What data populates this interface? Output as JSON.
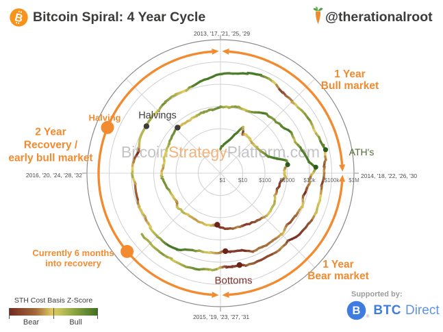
{
  "header": {
    "title": "Bitcoin Spiral: 4 Year Cycle",
    "attribution": "@therationalroot"
  },
  "watermark": {
    "part1": "Bitcoin",
    "part2": "Strategy",
    "part3": "Platform.com"
  },
  "axis": {
    "year_labels": {
      "top": "2013, '17, '21, '25, '29",
      "right": "2014, '18, '22, '26, '30",
      "bottom": "2015, '19, '23, '27, '31",
      "left": "2016, '20, '24, '28, '32"
    },
    "radial_ticks": [
      "$1",
      "$10",
      "$100",
      "$1000",
      "$10k",
      "$100k",
      "$1M"
    ]
  },
  "annotations": {
    "bull_phase": "1 Year\nBull market",
    "bear_phase": "1 Year\nBear market",
    "recovery_phase": "2 Year\nRecovery /\nearly bull market",
    "halving_marker": "Halving",
    "current_marker": "Currently 6 months\ninto recovery",
    "halvings": "Halvings",
    "bottoms": "Bottoms",
    "aths": "ATH's"
  },
  "legend": {
    "title": "STH Cost Basis Z-Score",
    "left_label": "Bear",
    "right_label": "Bull"
  },
  "supported": {
    "label": "Supported by:",
    "brand_bold": "BTC",
    "brand_light": "Direct",
    "registered": "®"
  },
  "colors": {
    "accent_orange": "#f28b30",
    "bear_red": "#7b2d26",
    "neutral_yellow": "#e0cb5e",
    "bull_green": "#497a27",
    "grid_gray": "#cfcfcf",
    "outer_ring_gray": "#8a8a8a",
    "text_dark": "#3d3d3d",
    "ath_green": "#4e6b2f",
    "btc_blue": "#3f7ce0",
    "bitcoin_orange": "#f7931a"
  },
  "chart_data": {
    "type": "line",
    "subtype": "polar-log-spiral",
    "title": "Bitcoin Spiral: 4 Year Cycle",
    "angle_mapping": "one revolution = 4 years, clockwise; 2013/17/21/25 at top, 2014/18/22/26 right, 2015/19/23/27 bottom, 2016/20/24/28 left",
    "radius_mapping": "log10 of BTC price in USD; $1 at center, decade rings out to $1M outer ring",
    "color_mapping": "STH Cost Basis Z-Score: -1 = bear (dark red), 0 = neutral (yellow), +1 = bull (dark green)",
    "point_format": "[decimal_year, price_usd, z_score]",
    "points": [
      [
        2013.0,
        13,
        0.9
      ],
      [
        2013.08,
        21,
        0.95
      ],
      [
        2013.17,
        34,
        1
      ],
      [
        2013.25,
        95,
        1
      ],
      [
        2013.29,
        215,
        0.8
      ],
      [
        2013.33,
        98,
        -0.85
      ],
      [
        2013.38,
        122,
        0
      ],
      [
        2013.46,
        104,
        0.1
      ],
      [
        2013.54,
        92,
        -0.3
      ],
      [
        2013.63,
        107,
        0.3
      ],
      [
        2013.71,
        131,
        0.5
      ],
      [
        2013.79,
        200,
        0.85
      ],
      [
        2013.84,
        430,
        1
      ],
      [
        2013.88,
        1080,
        1
      ],
      [
        2013.92,
        1100,
        0.6
      ],
      [
        2013.96,
        745,
        -0.5
      ],
      [
        2014.0,
        770,
        0
      ],
      [
        2014.04,
        825,
        0.2
      ],
      [
        2014.08,
        560,
        -0.8
      ],
      [
        2014.17,
        455,
        -0.9
      ],
      [
        2014.25,
        445,
        -0.4
      ],
      [
        2014.33,
        585,
        0.35
      ],
      [
        2014.42,
        640,
        0.2
      ],
      [
        2014.5,
        615,
        -0.2
      ],
      [
        2014.58,
        500,
        -0.7
      ],
      [
        2014.67,
        420,
        -0.85
      ],
      [
        2014.75,
        350,
        -0.9
      ],
      [
        2014.83,
        368,
        -0.4
      ],
      [
        2014.92,
        330,
        -0.8
      ],
      [
        2015.0,
        278,
        -0.9
      ],
      [
        2015.04,
        210,
        -1
      ],
      [
        2015.08,
        226,
        -0.5
      ],
      [
        2015.17,
        258,
        0
      ],
      [
        2015.25,
        245,
        -0.15
      ],
      [
        2015.33,
        234,
        -0.3
      ],
      [
        2015.42,
        230,
        -0.2
      ],
      [
        2015.5,
        268,
        0.3
      ],
      [
        2015.58,
        282,
        0.2
      ],
      [
        2015.63,
        230,
        -0.5
      ],
      [
        2015.71,
        236,
        -0.1
      ],
      [
        2015.79,
        268,
        0.3
      ],
      [
        2015.83,
        320,
        0.65
      ],
      [
        2015.92,
        382,
        0.7
      ],
      [
        2015.96,
        442,
        0.6
      ],
      [
        2016.0,
        432,
        0.1
      ],
      [
        2016.08,
        375,
        -0.35
      ],
      [
        2016.17,
        418,
        0.15
      ],
      [
        2016.25,
        417,
        0
      ],
      [
        2016.33,
        452,
        0.35
      ],
      [
        2016.42,
        532,
        0.7
      ],
      [
        2016.5,
        668,
        0.75
      ],
      [
        2016.52,
        650,
        0.5
      ],
      [
        2016.58,
        600,
        -0.1
      ],
      [
        2016.67,
        575,
        -0.15
      ],
      [
        2016.75,
        612,
        0.2
      ],
      [
        2016.83,
        700,
        0.55
      ],
      [
        2016.92,
        745,
        0.6
      ],
      [
        2017.0,
        965,
        0.8
      ],
      [
        2017.08,
        968,
        0.25
      ],
      [
        2017.17,
        1190,
        0.6
      ],
      [
        2017.25,
        1085,
        0.1
      ],
      [
        2017.33,
        1350,
        0.7
      ],
      [
        2017.42,
        2300,
        1
      ],
      [
        2017.5,
        2480,
        0.6
      ],
      [
        2017.58,
        2880,
        0.8
      ],
      [
        2017.67,
        4700,
        1
      ],
      [
        2017.75,
        4360,
        0.2
      ],
      [
        2017.83,
        6450,
        0.9
      ],
      [
        2017.92,
        9900,
        1
      ],
      [
        2017.96,
        19500,
        1
      ],
      [
        2018.0,
        13900,
        0.4
      ],
      [
        2018.04,
        10200,
        -0.55
      ],
      [
        2018.08,
        10300,
        -0.3
      ],
      [
        2018.17,
        6950,
        -1
      ],
      [
        2018.25,
        9250,
        0.1
      ],
      [
        2018.33,
        7500,
        -0.55
      ],
      [
        2018.42,
        6400,
        -0.8
      ],
      [
        2018.5,
        7750,
        -0.1
      ],
      [
        2018.58,
        7030,
        -0.5
      ],
      [
        2018.67,
        6600,
        -0.6
      ],
      [
        2018.75,
        6300,
        -0.55
      ],
      [
        2018.83,
        4010,
        -1
      ],
      [
        2018.92,
        3700,
        -0.9
      ],
      [
        2018.96,
        3250,
        -1
      ],
      [
        2019.0,
        3690,
        -0.6
      ],
      [
        2019.08,
        3850,
        -0.2
      ],
      [
        2019.17,
        4100,
        0.3
      ],
      [
        2019.25,
        5350,
        0.85
      ],
      [
        2019.33,
        8600,
        1
      ],
      [
        2019.42,
        10800,
        1
      ],
      [
        2019.5,
        10050,
        0.5
      ],
      [
        2019.58,
        9600,
        0.15
      ],
      [
        2019.67,
        8300,
        -0.4
      ],
      [
        2019.75,
        9150,
        0.1
      ],
      [
        2019.83,
        7550,
        -0.75
      ],
      [
        2019.92,
        7200,
        -0.6
      ],
      [
        2020.0,
        9350,
        0.4
      ],
      [
        2020.08,
        8550,
        -0.2
      ],
      [
        2020.17,
        6450,
        -1
      ],
      [
        2020.25,
        8640,
        0.2
      ],
      [
        2020.36,
        8700,
        0.3
      ],
      [
        2020.42,
        9450,
        0.45
      ],
      [
        2020.5,
        9140,
        0.1
      ],
      [
        2020.58,
        11350,
        0.7
      ],
      [
        2020.67,
        11650,
        0.4
      ],
      [
        2020.75,
        10780,
        0
      ],
      [
        2020.83,
        13800,
        0.9
      ],
      [
        2020.92,
        19700,
        1
      ],
      [
        2021.0,
        29000,
        1
      ],
      [
        2021.08,
        33100,
        0.9
      ],
      [
        2021.17,
        45200,
        1
      ],
      [
        2021.25,
        58800,
        1
      ],
      [
        2021.33,
        57800,
        0.4
      ],
      [
        2021.42,
        37300,
        -0.85
      ],
      [
        2021.5,
        35000,
        -0.5
      ],
      [
        2021.58,
        41500,
        0.3
      ],
      [
        2021.67,
        47150,
        0.7
      ],
      [
        2021.75,
        43800,
        0
      ],
      [
        2021.83,
        61350,
        0.9
      ],
      [
        2021.86,
        69000,
        0.85
      ],
      [
        2021.92,
        57000,
        -0.4
      ],
      [
        2021.96,
        46200,
        -0.75
      ],
      [
        2022.0,
        47700,
        -0.3
      ],
      [
        2022.08,
        38500,
        -0.85
      ],
      [
        2022.17,
        43200,
        0
      ],
      [
        2022.25,
        45500,
        0.2
      ],
      [
        2022.33,
        37650,
        -0.7
      ],
      [
        2022.42,
        31800,
        -0.9
      ],
      [
        2022.5,
        19950,
        -1
      ],
      [
        2022.58,
        23300,
        -0.4
      ],
      [
        2022.67,
        20050,
        -0.8
      ],
      [
        2022.75,
        19400,
        -0.85
      ],
      [
        2022.83,
        20500,
        -0.6
      ],
      [
        2022.87,
        16500,
        -1
      ],
      [
        2022.92,
        17150,
        -0.9
      ],
      [
        2022.96,
        16550,
        -1
      ],
      [
        2023.0,
        16600,
        -0.6
      ],
      [
        2023.04,
        23100,
        0.5
      ],
      [
        2023.08,
        23150,
        0.3
      ],
      [
        2023.17,
        28500,
        0.8
      ],
      [
        2023.25,
        29250,
        0.5
      ],
      [
        2023.33,
        27200,
        0.1
      ],
      [
        2023.42,
        30450,
        0.6
      ],
      [
        2023.5,
        29250,
        0.3
      ],
      [
        2023.58,
        30500,
        0.45
      ]
    ],
    "halving_dots": [
      [
        2016.52,
        650
      ],
      [
        2020.36,
        8700
      ]
    ],
    "bottom_dots": [
      [
        2015.04,
        210
      ],
      [
        2018.96,
        3250
      ],
      [
        2022.87,
        16500
      ]
    ],
    "ath_dots": [
      [
        2013.92,
        1100
      ],
      [
        2017.96,
        19500
      ],
      [
        2021.86,
        69000
      ]
    ],
    "cycle_arcs": [
      {
        "name": "bull",
        "from_deg": 4,
        "to_deg": 86
      },
      {
        "name": "bear",
        "from_deg": 94,
        "to_deg": 176
      },
      {
        "name": "recovery",
        "from_deg": 184,
        "to_deg": 356
      }
    ],
    "cycle_markers": [
      {
        "name": "halving",
        "angle_deg": 292
      },
      {
        "name": "current",
        "angle_deg": 230
      }
    ]
  }
}
